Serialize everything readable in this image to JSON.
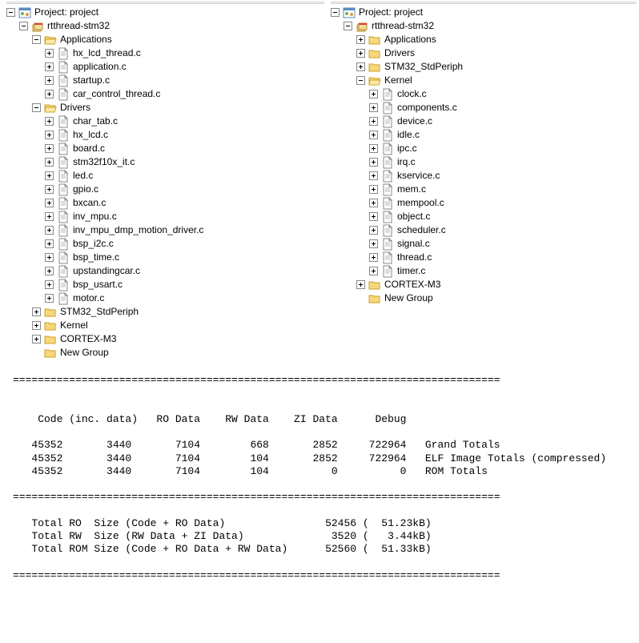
{
  "leftPane": {
    "root": {
      "label": "Project: project"
    },
    "project": {
      "label": "rtthread-stm32"
    },
    "nodes": [
      {
        "label": "Applications",
        "icon": "folder-open",
        "expander": "minus",
        "children": [
          {
            "label": "hx_lcd_thread.c"
          },
          {
            "label": "application.c"
          },
          {
            "label": "startup.c"
          },
          {
            "label": "car_control_thread.c"
          }
        ]
      },
      {
        "label": "Drivers",
        "icon": "folder-open",
        "expander": "minus",
        "children": [
          {
            "label": "char_tab.c"
          },
          {
            "label": "hx_lcd.c"
          },
          {
            "label": "board.c"
          },
          {
            "label": "stm32f10x_it.c"
          },
          {
            "label": "led.c"
          },
          {
            "label": "gpio.c"
          },
          {
            "label": "bxcan.c"
          },
          {
            "label": "inv_mpu.c"
          },
          {
            "label": "inv_mpu_dmp_motion_driver.c"
          },
          {
            "label": "bsp_i2c.c"
          },
          {
            "label": "bsp_time.c"
          },
          {
            "label": "upstandingcar.c"
          },
          {
            "label": "bsp_usart.c"
          },
          {
            "label": "motor.c"
          }
        ]
      },
      {
        "label": "STM32_StdPeriph",
        "icon": "folder",
        "expander": "plus"
      },
      {
        "label": "Kernel",
        "icon": "folder",
        "expander": "plus"
      },
      {
        "label": "CORTEX-M3",
        "icon": "folder",
        "expander": "plus"
      },
      {
        "label": "New Group",
        "icon": "folder",
        "expander": "none"
      }
    ]
  },
  "rightPane": {
    "root": {
      "label": "Project: project"
    },
    "project": {
      "label": "rtthread-stm32"
    },
    "nodes": [
      {
        "label": "Applications",
        "icon": "folder",
        "expander": "plus"
      },
      {
        "label": "Drivers",
        "icon": "folder",
        "expander": "plus"
      },
      {
        "label": "STM32_StdPeriph",
        "icon": "folder",
        "expander": "plus"
      },
      {
        "label": "Kernel",
        "icon": "folder-open",
        "expander": "minus",
        "children": [
          {
            "label": "clock.c"
          },
          {
            "label": "components.c"
          },
          {
            "label": "device.c"
          },
          {
            "label": "idle.c"
          },
          {
            "label": "ipc.c"
          },
          {
            "label": "irq.c"
          },
          {
            "label": "kservice.c"
          },
          {
            "label": "mem.c"
          },
          {
            "label": "mempool.c"
          },
          {
            "label": "object.c"
          },
          {
            "label": "scheduler.c"
          },
          {
            "label": "signal.c"
          },
          {
            "label": "thread.c"
          },
          {
            "label": "timer.c"
          }
        ]
      },
      {
        "label": "CORTEX-M3",
        "icon": "folder",
        "expander": "plus"
      },
      {
        "label": "New Group",
        "icon": "folder",
        "expander": "none"
      }
    ]
  },
  "buildOutput": {
    "sep": "==============================================================================",
    "header": "    Code (inc. data)   RO Data    RW Data    ZI Data      Debug   ",
    "rows": [
      "   45352       3440       7104        668       2852     722964   Grand Totals",
      "   45352       3440       7104        104       2852     722964   ELF Image Totals (compressed)",
      "   45352       3440       7104        104          0          0   ROM Totals"
    ],
    "totals": [
      "   Total RO  Size (Code + RO Data)                52456 (  51.23kB)",
      "   Total RW  Size (RW Data + ZI Data)              3520 (   3.44kB)",
      "   Total ROM Size (Code + RO Data + RW Data)      52560 (  51.33kB)"
    ]
  }
}
